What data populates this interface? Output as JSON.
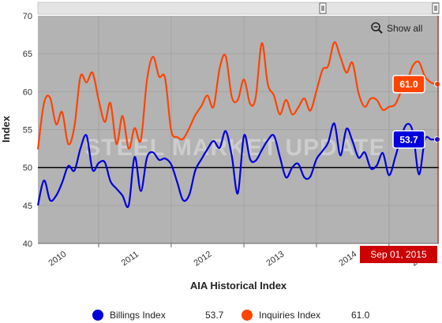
{
  "chart_data": {
    "type": "line",
    "xlabel": "AIA Historical Index",
    "ylabel": "Index",
    "ylim": [
      40,
      70
    ],
    "yticks": [
      40,
      45,
      50,
      55,
      60,
      65,
      70
    ],
    "xlim": [
      "2010-03-01",
      "2015-09-01"
    ],
    "xticks": [
      "2010",
      "2011",
      "2012",
      "2013",
      "2014",
      "2015"
    ],
    "grid": true,
    "reference_line": 50,
    "watermark": "STEEL MARKET UPDATE",
    "show_all_label": "Show all",
    "selected_date": "Sep 01, 2015",
    "legend_position": "bottom",
    "x": [
      "2010-03-01",
      "2010-04-01",
      "2010-05-01",
      "2010-06-01",
      "2010-07-01",
      "2010-08-01",
      "2010-09-01",
      "2010-10-01",
      "2010-11-01",
      "2010-12-01",
      "2011-01-01",
      "2011-02-01",
      "2011-03-01",
      "2011-04-01",
      "2011-05-01",
      "2011-06-01",
      "2011-07-01",
      "2011-08-01",
      "2011-09-01",
      "2011-10-01",
      "2011-11-01",
      "2011-12-01",
      "2012-01-01",
      "2012-02-01",
      "2012-03-01",
      "2012-04-01",
      "2012-05-01",
      "2012-06-01",
      "2012-07-01",
      "2012-08-01",
      "2012-09-01",
      "2012-10-01",
      "2012-11-01",
      "2012-12-01",
      "2013-01-01",
      "2013-02-01",
      "2013-03-01",
      "2013-04-01",
      "2013-05-01",
      "2013-06-01",
      "2013-07-01",
      "2013-08-01",
      "2013-09-01",
      "2013-10-01",
      "2013-11-01",
      "2013-12-01",
      "2014-01-01",
      "2014-02-01",
      "2014-03-01",
      "2014-04-01",
      "2014-05-01",
      "2014-06-01",
      "2014-07-01",
      "2014-08-01",
      "2014-09-01",
      "2014-10-01",
      "2014-11-01",
      "2014-12-01",
      "2015-01-01",
      "2015-02-01",
      "2015-03-01",
      "2015-04-01",
      "2015-05-01",
      "2015-06-01",
      "2015-07-01",
      "2015-08-01",
      "2015-09-01"
    ],
    "series": [
      {
        "name": "Billings Index",
        "color": "#0000dd",
        "last_value": "53.7",
        "values": [
          45.0,
          48.3,
          45.7,
          46.3,
          48.0,
          50.2,
          49.6,
          52.5,
          54.2,
          49.7,
          50.6,
          50.7,
          48.2,
          47.2,
          46.3,
          45.0,
          51.4,
          46.9,
          51.3,
          52.0,
          51.0,
          51.2,
          50.4,
          48.0,
          45.7,
          46.4,
          49.6,
          51.1,
          52.4,
          53.5,
          52.6,
          54.8,
          51.5,
          46.6,
          54.2,
          51.1,
          50.9,
          52.3,
          53.6,
          54.2,
          51.4,
          48.7,
          50.0,
          50.5,
          48.7,
          48.8,
          51.1,
          52.2,
          53.3,
          55.8,
          51.6,
          55.1,
          53.5,
          51.3,
          52.0,
          49.9,
          50.3,
          51.9,
          49.0,
          51.3,
          53.9,
          55.7,
          54.7,
          49.1,
          53.7,
          53.7,
          53.7
        ]
      },
      {
        "name": "Inquiries Index",
        "color": "#ff4400",
        "last_value": "61.0",
        "values": [
          52.4,
          58.5,
          59.2,
          55.7,
          57.3,
          53.1,
          55.4,
          62.0,
          61.2,
          62.5,
          58.9,
          56.0,
          58.5,
          53.1,
          56.8,
          52.5,
          55.2,
          53.6,
          61.5,
          64.6,
          62.0,
          61.8,
          54.9,
          54.0,
          53.8,
          55.2,
          56.9,
          58.1,
          59.5,
          58.0,
          63.1,
          64.7,
          59.3,
          58.9,
          61.6,
          58.4,
          59.2,
          66.4,
          61.0,
          59.5,
          57.0,
          58.9,
          57.0,
          57.9,
          59.1,
          57.5,
          60.1,
          62.9,
          63.4,
          66.5,
          64.6,
          62.5,
          63.8,
          59.8,
          58.0,
          59.1,
          58.9,
          57.6,
          58.0,
          58.3,
          59.9,
          61.3,
          63.4,
          63.9,
          62.0,
          61.2,
          61.0
        ]
      }
    ]
  },
  "legend": [
    {
      "label": "Billings Index",
      "value": "53.7",
      "color": "#0000dd"
    },
    {
      "label": "Inquiries Index",
      "value": "61.0",
      "color": "#ff4400"
    }
  ],
  "colors": {
    "plot_bg": "#b3b3b3",
    "grid": "#9a9a9a",
    "navigator_bg": "#e4e4e4",
    "date_badge": "#cc0000"
  }
}
